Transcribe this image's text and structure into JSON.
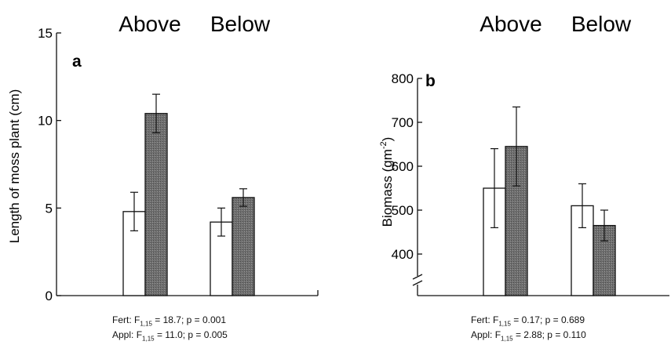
{
  "chart_data": [
    {
      "type": "bar",
      "panel": "a",
      "categories": [
        "Above",
        "Below"
      ],
      "series": [
        {
          "values": [
            4.8,
            4.2
          ],
          "errors": [
            1.1,
            0.8
          ]
        },
        {
          "values": [
            10.4,
            5.6
          ],
          "errors": [
            1.1,
            0.5
          ]
        }
      ],
      "ylabel": "Length of moss plant (cm)",
      "ylim": [
        0,
        15
      ],
      "yticks": [
        "0",
        "5",
        "10",
        "15"
      ],
      "stats": [
        {
          "name": "Fert",
          "df_sub": "1,15",
          "text": " = 18.7; p = 0.001"
        },
        {
          "name": "Appl",
          "df_sub": "1,15",
          "text": " = 11.0; p = 0.005"
        }
      ]
    },
    {
      "type": "bar",
      "panel": "b",
      "categories": [
        "Above",
        "Below"
      ],
      "series": [
        {
          "values": [
            550,
            510
          ],
          "errors": [
            90,
            50
          ]
        },
        {
          "values": [
            645,
            465
          ],
          "errors": [
            90,
            35
          ]
        }
      ],
      "ylabel": "Biomass (gm",
      "ylabel_sup": "-2",
      "ylabel_end": ")",
      "ylim": [
        400,
        800
      ],
      "axis_break": true,
      "yticks": [
        "400",
        "500",
        "600",
        "700",
        "800"
      ],
      "stats": [
        {
          "name": "Fert",
          "df_sub": "1,15",
          "text": " = 0.17; p = 0.689"
        },
        {
          "name": "Appl",
          "df_sub": "1,15",
          "text": " = 2.88; p = 0.110"
        }
      ]
    }
  ],
  "colors": {
    "series_1_fill": "#ffffff",
    "series_2_fill": "#6e6e6e",
    "stroke": "#111111"
  }
}
